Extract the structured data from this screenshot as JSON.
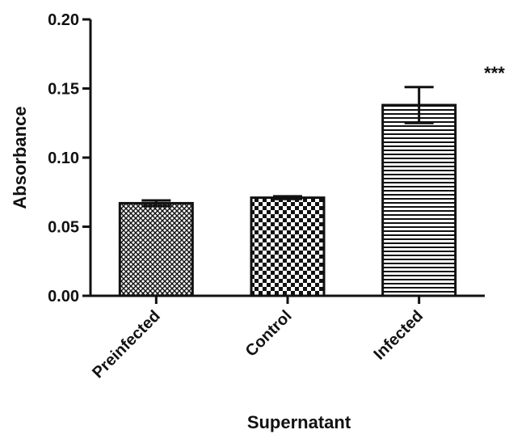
{
  "chart_data": {
    "type": "bar",
    "title": "",
    "xlabel": "Supernatant",
    "ylabel": "Absorbance",
    "ylim": [
      0,
      0.2
    ],
    "yticks": [
      "0.00",
      "0.05",
      "0.10",
      "0.15",
      "0.20"
    ],
    "categories": [
      "Preinfected",
      "Control",
      "Infected"
    ],
    "values": [
      0.067,
      0.071,
      0.138
    ],
    "errors": [
      0.002,
      0.001,
      0.013
    ],
    "patterns": [
      "crosshatch",
      "checker",
      "horizontal-lines"
    ],
    "annotations": [
      "",
      "",
      "***"
    ],
    "grid": false,
    "colors": {
      "stroke": "#111111",
      "fill": "#ffffff"
    }
  }
}
